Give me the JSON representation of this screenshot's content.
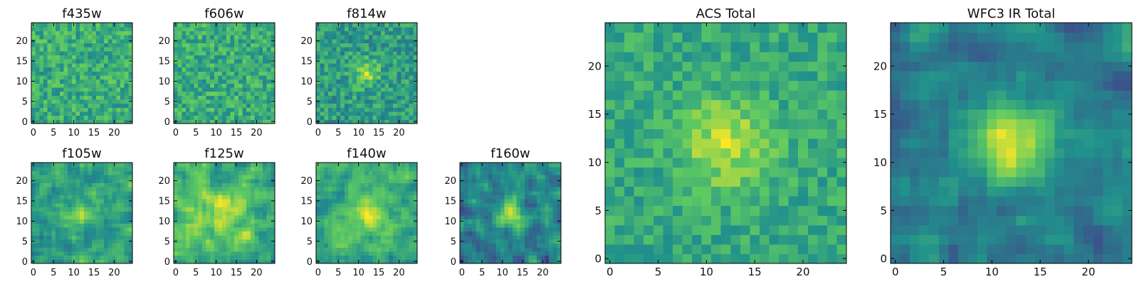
{
  "figure": {
    "background": "#ffffff",
    "colormap": "viridis",
    "colormap_stops": [
      "#440154",
      "#3b528b",
      "#21918c",
      "#5ec962",
      "#fde725"
    ]
  },
  "chart_data": [
    {
      "type": "heatmap",
      "title": "f435w",
      "grid_size": 25,
      "x_ticks": [
        "0",
        "5",
        "10",
        "15",
        "20"
      ],
      "y_ticks": [
        "0",
        "5",
        "10",
        "15",
        "20"
      ],
      "xlim": [
        -0.5,
        24.5
      ],
      "ylim": [
        -0.5,
        24.5
      ],
      "smooth": 0.0,
      "source_sigma": 0,
      "source_amp": 0.0,
      "noise_mean": 0.62,
      "noise_amp": 0.16,
      "vmin": 0.0,
      "vmax": 1.0,
      "seed": 11
    },
    {
      "type": "heatmap",
      "title": "f606w",
      "grid_size": 25,
      "x_ticks": [
        "0",
        "5",
        "10",
        "15",
        "20"
      ],
      "y_ticks": [
        "0",
        "5",
        "10",
        "15",
        "20"
      ],
      "xlim": [
        -0.5,
        24.5
      ],
      "ylim": [
        -0.5,
        24.5
      ],
      "smooth": 0.0,
      "source_sigma": 0,
      "source_amp": 0.0,
      "noise_mean": 0.62,
      "noise_amp": 0.16,
      "vmin": 0.0,
      "vmax": 1.0,
      "seed": 23
    },
    {
      "type": "heatmap",
      "title": "f814w",
      "grid_size": 25,
      "x_ticks": [
        "0",
        "5",
        "10",
        "15",
        "20"
      ],
      "y_ticks": [
        "0",
        "5",
        "10",
        "15",
        "20"
      ],
      "xlim": [
        -0.5,
        24.5
      ],
      "ylim": [
        -0.5,
        24.5
      ],
      "smooth": 0.0,
      "source_sigma": 2.2,
      "source_amp": 0.3,
      "noise_mean": 0.55,
      "noise_amp": 0.16,
      "vmin": 0.0,
      "vmax": 1.0,
      "seed": 37
    },
    {
      "type": "heatmap",
      "title": "f105w",
      "grid_size": 25,
      "x_ticks": [
        "0",
        "5",
        "10",
        "15",
        "20"
      ],
      "y_ticks": [
        "0",
        "5",
        "10",
        "15",
        "20"
      ],
      "xlim": [
        -0.5,
        24.5
      ],
      "ylim": [
        -0.5,
        24.5
      ],
      "smooth": 1.0,
      "source_sigma": 2.6,
      "source_amp": 0.25,
      "noise_mean": 0.56,
      "noise_amp": 0.22,
      "vmin": 0.0,
      "vmax": 1.0,
      "seed": 41
    },
    {
      "type": "heatmap",
      "title": "f125w",
      "grid_size": 25,
      "x_ticks": [
        "0",
        "5",
        "10",
        "15",
        "20"
      ],
      "y_ticks": [
        "0",
        "5",
        "10",
        "15",
        "20"
      ],
      "xlim": [
        -0.5,
        24.5
      ],
      "ylim": [
        -0.5,
        24.5
      ],
      "smooth": 1.0,
      "source_sigma": 4.0,
      "source_amp": 0.22,
      "noise_mean": 0.66,
      "noise_amp": 0.22,
      "vmin": 0.0,
      "vmax": 1.0,
      "seed": 53
    },
    {
      "type": "heatmap",
      "title": "f140w",
      "grid_size": 25,
      "x_ticks": [
        "0",
        "5",
        "10",
        "15",
        "20"
      ],
      "y_ticks": [
        "0",
        "5",
        "10",
        "15",
        "20"
      ],
      "xlim": [
        -0.5,
        24.5
      ],
      "ylim": [
        -0.5,
        24.5
      ],
      "smooth": 1.0,
      "source_sigma": 3.5,
      "source_amp": 0.28,
      "noise_mean": 0.62,
      "noise_amp": 0.2,
      "vmin": 0.0,
      "vmax": 1.0,
      "seed": 67
    },
    {
      "type": "heatmap",
      "title": "f160w",
      "grid_size": 25,
      "x_ticks": [
        "0",
        "5",
        "10",
        "15",
        "20"
      ],
      "y_ticks": [
        "0",
        "5",
        "10",
        "15",
        "20"
      ],
      "xlim": [
        -0.5,
        24.5
      ],
      "ylim": [
        -0.5,
        24.5
      ],
      "smooth": 1.0,
      "source_sigma": 2.6,
      "source_amp": 0.45,
      "noise_mean": 0.45,
      "noise_amp": 0.24,
      "vmin": 0.0,
      "vmax": 1.0,
      "seed": 79
    },
    {
      "type": "heatmap",
      "title": "ACS Total",
      "grid_size": 25,
      "x_ticks": [
        "0",
        "5",
        "10",
        "15",
        "20"
      ],
      "y_ticks": [
        "0",
        "5",
        "10",
        "15",
        "20"
      ],
      "xlim": [
        -0.5,
        24.5
      ],
      "ylim": [
        -0.5,
        24.5
      ],
      "smooth": 0.0,
      "source_sigma": 3.2,
      "source_amp": 0.3,
      "noise_mean": 0.6,
      "noise_amp": 0.12,
      "vmin": 0.0,
      "vmax": 1.0,
      "seed": 97
    },
    {
      "type": "heatmap",
      "title": "WFC3 IR Total",
      "grid_size": 25,
      "x_ticks": [
        "0",
        "5",
        "10",
        "15",
        "20"
      ],
      "y_ticks": [
        "0",
        "5",
        "10",
        "15",
        "20"
      ],
      "xlim": [
        -0.5,
        24.5
      ],
      "ylim": [
        -0.5,
        24.5
      ],
      "smooth": 1.0,
      "source_sigma": 3.0,
      "source_amp": 0.5,
      "noise_mean": 0.42,
      "noise_amp": 0.18,
      "vmin": 0.0,
      "vmax": 1.0,
      "seed": 113
    }
  ]
}
